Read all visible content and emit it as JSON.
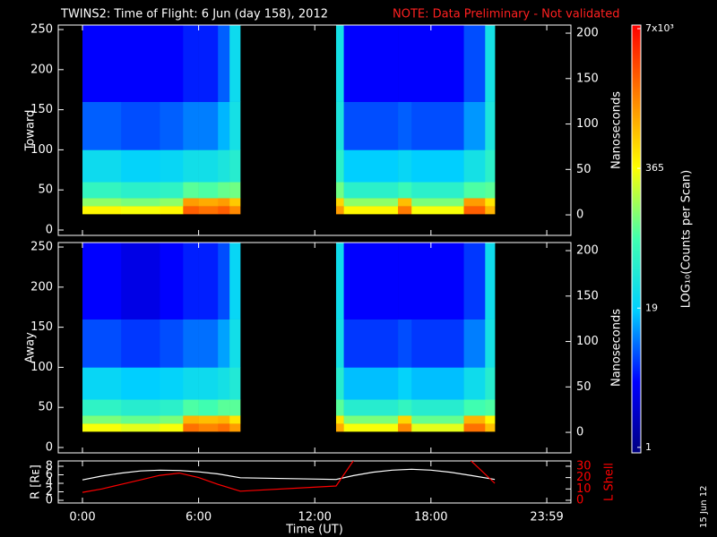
{
  "title": "TWINS2: Time of Flight:  6 Jun (day 158), 2012",
  "note": "NOTE: Data Preliminary - Not validated",
  "date_stamp": "15 Jun 12",
  "colorbar": {
    "label": "LOG₁₀(Counts per Scan)",
    "log": true,
    "lim": [
      0.89,
      7550
    ],
    "ticks": [
      1,
      19,
      365,
      {
        "value": 7000,
        "label": "7x10³"
      }
    ],
    "colors": [
      "#000080",
      "#0000ff",
      "#00d0ff",
      "#40ffb0",
      "#ffff00",
      "#ff8000",
      "#ff0000"
    ]
  },
  "chart_data": [
    {
      "type": "heatmap",
      "ylabel": "Toward",
      "y2label": "Nanoseconds",
      "ylim": [
        -6.7,
        255.6
      ],
      "yticks": [
        0,
        50,
        100,
        150,
        200,
        250
      ],
      "y2lim": [
        -22.6,
        208.9
      ],
      "y2ticks": [
        0,
        50,
        100,
        150,
        200
      ],
      "x_edges": [
        0,
        2,
        4,
        5.2,
        6,
        7,
        7.6,
        8.15,
        13.1,
        13.5,
        16.3,
        17,
        19.7,
        20.8,
        21.3
      ],
      "y_edges": [
        20,
        30,
        40,
        60,
        100,
        160,
        256
      ],
      "z": [
        [
          400,
          350,
          400,
          2500,
          2000,
          2500,
          1500,
          null,
          1200,
          400,
          1800,
          350,
          2500,
          900
        ],
        [
          150,
          130,
          150,
          1200,
          1000,
          1200,
          700,
          null,
          600,
          150,
          800,
          130,
          1200,
          500
        ],
        [
          60,
          50,
          55,
          100,
          90,
          110,
          120,
          null,
          120,
          50,
          70,
          50,
          90,
          100
        ],
        [
          25,
          20,
          22,
          28,
          28,
          35,
          45,
          null,
          50,
          18,
          22,
          18,
          30,
          50
        ],
        [
          8,
          7,
          8,
          10,
          10,
          15,
          30,
          null,
          35,
          7,
          8,
          7,
          12,
          35
        ],
        [
          4,
          4,
          4,
          5,
          5,
          8,
          25,
          null,
          30,
          4,
          4,
          4,
          7,
          30
        ]
      ]
    },
    {
      "type": "heatmap",
      "ylabel": "Away",
      "y2label": "Nanoseconds",
      "ylim": [
        -6.7,
        255.6
      ],
      "yticks": [
        0,
        50,
        100,
        150,
        200,
        250
      ],
      "y2lim": [
        -22.6,
        208.9
      ],
      "y2ticks": [
        0,
        50,
        100,
        150,
        200
      ],
      "x_edges": [
        0,
        2,
        4,
        5.2,
        6,
        7,
        7.6,
        8.15,
        13.1,
        13.5,
        16.3,
        17,
        19.7,
        20.8,
        21.3
      ],
      "y_edges": [
        20,
        30,
        40,
        60,
        100,
        160,
        256
      ],
      "z": [
        [
          350,
          300,
          350,
          2000,
          1600,
          2000,
          1200,
          null,
          1000,
          350,
          1500,
          300,
          2000,
          800
        ],
        [
          130,
          110,
          130,
          900,
          800,
          900,
          500,
          null,
          500,
          130,
          600,
          110,
          900,
          400
        ],
        [
          55,
          45,
          50,
          90,
          80,
          100,
          100,
          null,
          100,
          45,
          60,
          45,
          80,
          90
        ],
        [
          22,
          18,
          20,
          25,
          25,
          30,
          40,
          null,
          45,
          16,
          20,
          16,
          26,
          45
        ],
        [
          7,
          6,
          7,
          9,
          9,
          13,
          28,
          null,
          30,
          6,
          7,
          6,
          10,
          30
        ],
        [
          4,
          3,
          4,
          5,
          5,
          7,
          22,
          null,
          26,
          4,
          4,
          4,
          6,
          26
        ]
      ]
    },
    {
      "type": "line",
      "xlabel": "Time (UT)",
      "xlim": [
        -1.25,
        25.23
      ],
      "xticks": [
        {
          "value": 0,
          "label": "0:00"
        },
        {
          "value": 6,
          "label": "6:00"
        },
        {
          "value": 12,
          "label": "12:00"
        },
        {
          "value": 18,
          "label": "18:00"
        },
        {
          "value": 23.983,
          "label": "23:59"
        }
      ],
      "ylim": [
        -0.63,
        9.26
      ],
      "yticks": [
        0,
        2,
        4,
        6,
        8
      ],
      "y2lim": [
        -2.4,
        34.7
      ],
      "y2ticks": [
        0,
        10,
        20,
        30
      ],
      "x": [
        0,
        1,
        2,
        3,
        4,
        5,
        6,
        7,
        8.15,
        13.1,
        14,
        15,
        16,
        17,
        18,
        19,
        20,
        21.3
      ],
      "series": [
        {
          "name": "R [Rᴇ]",
          "color": "#ffffff",
          "values": [
            4.8,
            5.7,
            6.4,
            6.9,
            7.1,
            7.0,
            6.7,
            6.2,
            5.3,
            4.9,
            5.8,
            6.6,
            7.1,
            7.3,
            7.1,
            6.6,
            5.9,
            4.9
          ]
        },
        {
          "name": "L Shell",
          "color": "#ff0000",
          "axis": "y2",
          "values": [
            7,
            10,
            14,
            18,
            22,
            24,
            20,
            14,
            8,
            12.6,
            35,
            null,
            null,
            null,
            null,
            null,
            36,
            15
          ]
        }
      ]
    }
  ]
}
